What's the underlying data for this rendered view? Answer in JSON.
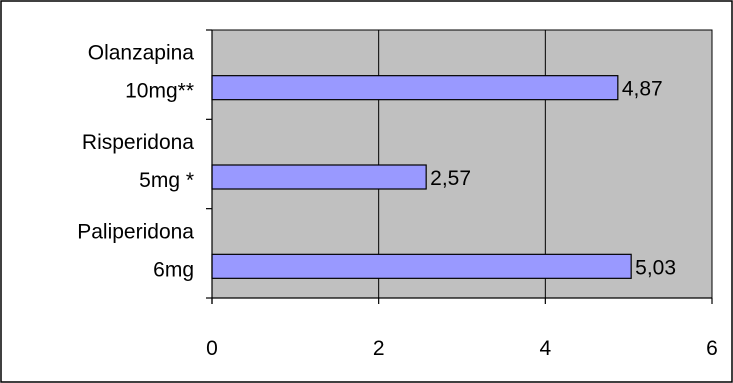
{
  "chart_data": {
    "type": "bar",
    "orientation": "horizontal",
    "categories": [
      [
        "Olanzapina",
        "10mg**"
      ],
      [
        "Risperidona",
        "5mg *"
      ],
      [
        "Paliperidona",
        "6mg"
      ]
    ],
    "values": [
      4.87,
      2.57,
      5.03
    ],
    "value_labels": [
      "4,87",
      "2,57",
      "5,03"
    ],
    "xlim": [
      0,
      6
    ],
    "xticks": [
      0,
      2,
      4,
      6
    ],
    "xtick_labels": [
      "0",
      "2",
      "4",
      "6"
    ],
    "grid": true,
    "colors": {
      "bar_fill": "#9999ff",
      "plot_background": "#c0c0c0",
      "gridline": "#000000",
      "border": "#000000"
    }
  }
}
